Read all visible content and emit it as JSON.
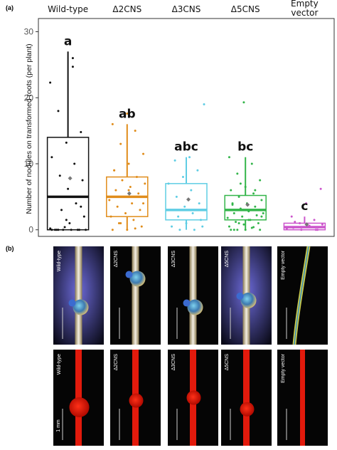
{
  "panel_a_label": "(a)",
  "panel_b_label": "(b)",
  "chart_data": {
    "type": "box",
    "title": "",
    "xlabel": "",
    "ylabel": "Number of nodules on transformed roots (per plant)",
    "ylim": [
      -1,
      32
    ],
    "yticks": [
      0,
      10,
      20,
      30
    ],
    "categories": [
      "Wild-type",
      "Δ2CNS",
      "Δ3CNS",
      "Δ5CNS",
      "Empty vector"
    ],
    "significance_letters": [
      "a",
      "ab",
      "abc",
      "bc",
      "c"
    ],
    "colors": [
      "#111111",
      "#e08c1a",
      "#5fcde4",
      "#33b54a",
      "#cc55cc"
    ],
    "boxes": [
      {
        "q1": 0,
        "median": 5,
        "q3": 14,
        "whisker_low": 0,
        "whisker_high": 27,
        "mean": 7.8
      },
      {
        "q1": 2,
        "median": 5,
        "q3": 8,
        "whisker_low": 0,
        "whisker_high": 16,
        "mean": 5.5
      },
      {
        "q1": 1.5,
        "median": 3,
        "q3": 7,
        "whisker_low": 0,
        "whisker_high": 11,
        "mean": 4.6
      },
      {
        "q1": 1.5,
        "median": 3,
        "q3": 5.2,
        "whisker_low": 0,
        "whisker_high": 11,
        "mean": 3.8
      },
      {
        "q1": 0,
        "median": 0.4,
        "q3": 1,
        "whisker_low": 0,
        "whisker_high": 2,
        "mean": 0.8
      }
    ],
    "points": [
      [
        22.3,
        24.7,
        18,
        14.8,
        13.2,
        11,
        10,
        8.2,
        7.5,
        6.2,
        5,
        4,
        3,
        2,
        1,
        0,
        0,
        0,
        0,
        0,
        0,
        0,
        0.4,
        0.2,
        26,
        0,
        3.5,
        1.5,
        0
      ],
      [
        17.6,
        16,
        15,
        13,
        11.5,
        10,
        9,
        8,
        7.5,
        7,
        6.5,
        6,
        5.5,
        5,
        4.5,
        4,
        3.5,
        3,
        2.5,
        2,
        1.5,
        1,
        0.5,
        0,
        0,
        0.2,
        1,
        4,
        6,
        9
      ],
      [
        19,
        11,
        10.5,
        9,
        8,
        7,
        6,
        5,
        4,
        3.5,
        3,
        2.5,
        2,
        1.5,
        1,
        0.5,
        0,
        0,
        0.5
      ],
      [
        19.3,
        11,
        10,
        8.5,
        7.5,
        6.5,
        6,
        5.5,
        5,
        4.5,
        4,
        3.8,
        3.5,
        3.2,
        3,
        2.8,
        2.5,
        2.2,
        2,
        1.8,
        1.5,
        1.2,
        1,
        0.8,
        0.5,
        0.3,
        0,
        0,
        0,
        0,
        0.4,
        1,
        2,
        3,
        4,
        6,
        7,
        2.5,
        1.5,
        0
      ],
      [
        6.2,
        4,
        2,
        1.5,
        1,
        0.8,
        0.5,
        0.3,
        0,
        0,
        0.2,
        0.6,
        1.2,
        0
      ]
    ]
  },
  "panel_b": {
    "row1_labels": [
      "Wild-type",
      "Δ2CNS",
      "Δ3CNS",
      "Δ5CNS",
      "Empty vector"
    ],
    "row2_labels": [
      "Wild-type",
      "Δ2CNS",
      "Δ3CNS",
      "Δ5CNS",
      "Empty vector"
    ],
    "scale_label": "1 mm"
  }
}
